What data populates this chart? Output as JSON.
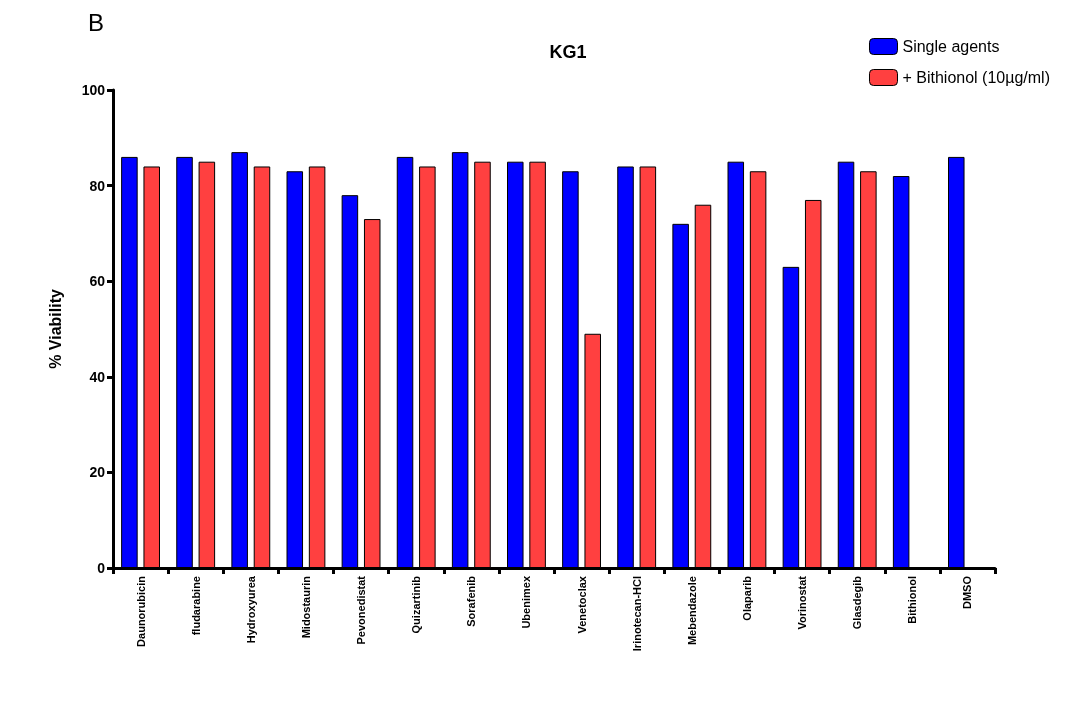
{
  "chart_data": {
    "type": "bar",
    "title": "KG1",
    "ylabel": "% Viability",
    "annotations": [
      "B"
    ],
    "categories": [
      "Daunorubicin",
      "fludarabine",
      "Hydroxyurea",
      "Midostaurin",
      "Pevonedistat",
      "Quizartinib",
      "Sorafenib",
      "Ubenimex",
      "Venetoclax",
      "Irinotecan-HCl",
      "Mebendazole",
      "Olaparib",
      "Vorinostat",
      "Glasdegib",
      "Bithionol",
      "DMSO"
    ],
    "series": [
      {
        "name": "Single agents",
        "color": "#0000ff",
        "values": [
          86,
          86,
          87,
          83,
          78,
          86,
          87,
          85,
          83,
          84,
          72,
          85,
          63,
          85,
          82,
          86
        ]
      },
      {
        "name": "+ Bithionol (10µg/ml)",
        "color": "#ff4040",
        "values": [
          84,
          85,
          84,
          84,
          73,
          84,
          85,
          85,
          49,
          84,
          76,
          83,
          77,
          83,
          null,
          null
        ]
      }
    ],
    "ylim": [
      0,
      100
    ],
    "yticks": [
      0,
      20,
      40,
      60,
      80,
      100
    ],
    "grid": false,
    "legend": "top right"
  }
}
